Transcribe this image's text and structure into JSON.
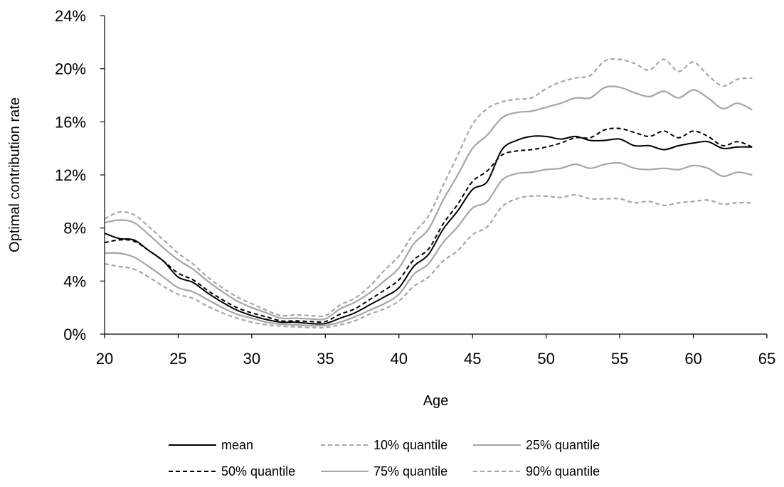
{
  "chart_data": {
    "type": "line",
    "title": "",
    "xlabel": "Age",
    "ylabel": "Optimal contribution rate",
    "xlim": [
      20,
      65
    ],
    "ylim": [
      0,
      24
    ],
    "xticks": [
      20,
      25,
      30,
      35,
      40,
      45,
      50,
      55,
      60,
      65
    ],
    "xtick_labels": [
      "20",
      "25",
      "30",
      "35",
      "40",
      "45",
      "50",
      "55",
      "60",
      "65"
    ],
    "yticks": [
      0,
      4,
      8,
      12,
      16,
      20,
      24
    ],
    "ytick_labels": [
      "0%",
      "4%",
      "8%",
      "12%",
      "16%",
      "20%",
      "24%"
    ],
    "grid": false,
    "legend_position": "bottom",
    "series": [
      {
        "name": "mean",
        "color": "#000000",
        "dash": "solid",
        "x": [
          20,
          21,
          22,
          23,
          24,
          25,
          26,
          27,
          28,
          29,
          30,
          31,
          32,
          33,
          34,
          35,
          36,
          37,
          38,
          39,
          40,
          41,
          42,
          43,
          44,
          45,
          46,
          47,
          48,
          49,
          50,
          51,
          52,
          53,
          54,
          55,
          56,
          57,
          58,
          59,
          60,
          61,
          62,
          63,
          64
        ],
        "y": [
          7.6,
          7.2,
          7.1,
          6.3,
          5.5,
          4.3,
          3.9,
          3.1,
          2.4,
          1.8,
          1.4,
          1.1,
          0.9,
          0.9,
          0.8,
          0.8,
          1.2,
          1.6,
          2.2,
          2.8,
          3.5,
          5.1,
          6.0,
          7.9,
          9.3,
          10.9,
          11.5,
          13.9,
          14.6,
          14.9,
          14.9,
          14.7,
          14.9,
          14.6,
          14.6,
          14.7,
          14.2,
          14.2,
          13.9,
          14.2,
          14.4,
          14.5,
          14.0,
          14.1,
          14.1
        ]
      },
      {
        "name": "10% quantile",
        "color": "#a6a6a6",
        "dash": "dashed",
        "x": [
          20,
          21,
          22,
          23,
          24,
          25,
          26,
          27,
          28,
          29,
          30,
          31,
          32,
          33,
          34,
          35,
          36,
          37,
          38,
          39,
          40,
          41,
          42,
          43,
          44,
          45,
          46,
          47,
          48,
          49,
          50,
          51,
          52,
          53,
          54,
          55,
          56,
          57,
          58,
          59,
          60,
          61,
          62,
          63,
          64
        ],
        "y": [
          5.3,
          5.1,
          4.9,
          4.3,
          3.6,
          3.0,
          2.7,
          2.1,
          1.6,
          1.2,
          0.9,
          0.7,
          0.6,
          0.55,
          0.5,
          0.5,
          0.7,
          1.0,
          1.5,
          1.9,
          2.5,
          3.6,
          4.3,
          5.5,
          6.3,
          7.5,
          8.1,
          9.6,
          10.2,
          10.4,
          10.4,
          10.3,
          10.5,
          10.2,
          10.2,
          10.2,
          9.9,
          10.0,
          9.7,
          9.9,
          10.0,
          10.1,
          9.8,
          9.9,
          9.9
        ]
      },
      {
        "name": "25% quantile",
        "color": "#a6a6a6",
        "dash": "solid",
        "x": [
          20,
          21,
          22,
          23,
          24,
          25,
          26,
          27,
          28,
          29,
          30,
          31,
          32,
          33,
          34,
          35,
          36,
          37,
          38,
          39,
          40,
          41,
          42,
          43,
          44,
          45,
          46,
          47,
          48,
          49,
          50,
          51,
          52,
          53,
          54,
          55,
          56,
          57,
          58,
          59,
          60,
          61,
          62,
          63,
          64
        ],
        "y": [
          6.1,
          6.1,
          5.8,
          5.1,
          4.3,
          3.5,
          3.2,
          2.6,
          2.0,
          1.5,
          1.2,
          0.9,
          0.75,
          0.7,
          0.65,
          0.65,
          0.9,
          1.3,
          1.8,
          2.3,
          3.0,
          4.5,
          5.3,
          6.9,
          8.1,
          9.5,
          10.0,
          11.6,
          12.1,
          12.2,
          12.4,
          12.5,
          12.8,
          12.5,
          12.8,
          12.9,
          12.5,
          12.4,
          12.5,
          12.4,
          12.7,
          12.5,
          11.9,
          12.2,
          12.0
        ]
      },
      {
        "name": "50% quantile",
        "color": "#000000",
        "dash": "dashed",
        "x": [
          20,
          21,
          22,
          23,
          24,
          25,
          26,
          27,
          28,
          29,
          30,
          31,
          32,
          33,
          34,
          35,
          36,
          37,
          38,
          39,
          40,
          41,
          42,
          43,
          44,
          45,
          46,
          47,
          48,
          49,
          50,
          51,
          52,
          53,
          54,
          55,
          56,
          57,
          58,
          59,
          60,
          61,
          62,
          63,
          64
        ],
        "y": [
          6.9,
          7.1,
          7.0,
          6.3,
          5.5,
          4.6,
          4.1,
          3.3,
          2.6,
          2.0,
          1.6,
          1.3,
          1.0,
          1.0,
          0.95,
          0.95,
          1.5,
          1.9,
          2.6,
          3.3,
          4.1,
          5.6,
          6.4,
          8.3,
          9.8,
          11.5,
          12.3,
          13.5,
          13.8,
          13.9,
          14.1,
          14.4,
          14.8,
          14.8,
          15.4,
          15.5,
          15.2,
          14.9,
          15.3,
          14.8,
          15.3,
          14.9,
          14.2,
          14.5,
          14.1
        ]
      },
      {
        "name": "75% quantile",
        "color": "#a6a6a6",
        "dash": "solid",
        "x": [
          20,
          21,
          22,
          23,
          24,
          25,
          26,
          27,
          28,
          29,
          30,
          31,
          32,
          33,
          34,
          35,
          36,
          37,
          38,
          39,
          40,
          41,
          42,
          43,
          44,
          45,
          46,
          47,
          48,
          49,
          50,
          51,
          52,
          53,
          54,
          55,
          56,
          57,
          58,
          59,
          60,
          61,
          62,
          63,
          64
        ],
        "y": [
          8.4,
          8.6,
          8.4,
          7.5,
          6.5,
          5.6,
          4.9,
          4.0,
          3.2,
          2.5,
          2.0,
          1.6,
          1.2,
          1.2,
          1.15,
          1.15,
          1.9,
          2.4,
          3.1,
          4.0,
          5.0,
          6.8,
          7.9,
          10.1,
          12.0,
          14.0,
          15.0,
          16.3,
          16.7,
          16.8,
          17.1,
          17.4,
          17.8,
          17.8,
          18.6,
          18.6,
          18.2,
          17.9,
          18.3,
          17.8,
          18.4,
          17.8,
          17.0,
          17.4,
          16.9
        ]
      },
      {
        "name": "90% quantile",
        "color": "#a6a6a6",
        "dash": "dashed",
        "x": [
          20,
          21,
          22,
          23,
          24,
          25,
          26,
          27,
          28,
          29,
          30,
          31,
          32,
          33,
          34,
          35,
          36,
          37,
          38,
          39,
          40,
          41,
          42,
          43,
          44,
          45,
          46,
          47,
          48,
          49,
          50,
          51,
          52,
          53,
          54,
          55,
          56,
          57,
          58,
          59,
          60,
          61,
          62,
          63,
          64
        ],
        "y": [
          8.7,
          9.2,
          9.0,
          8.1,
          7.1,
          6.1,
          5.3,
          4.3,
          3.5,
          2.8,
          2.3,
          1.8,
          1.4,
          1.45,
          1.4,
          1.4,
          2.2,
          2.7,
          3.6,
          4.8,
          5.9,
          7.6,
          8.9,
          11.2,
          13.5,
          15.8,
          17.0,
          17.5,
          17.7,
          17.8,
          18.5,
          19.0,
          19.3,
          19.5,
          20.6,
          20.7,
          20.4,
          19.9,
          20.7,
          19.8,
          20.5,
          19.5,
          18.7,
          19.2,
          19.3
        ]
      }
    ]
  }
}
